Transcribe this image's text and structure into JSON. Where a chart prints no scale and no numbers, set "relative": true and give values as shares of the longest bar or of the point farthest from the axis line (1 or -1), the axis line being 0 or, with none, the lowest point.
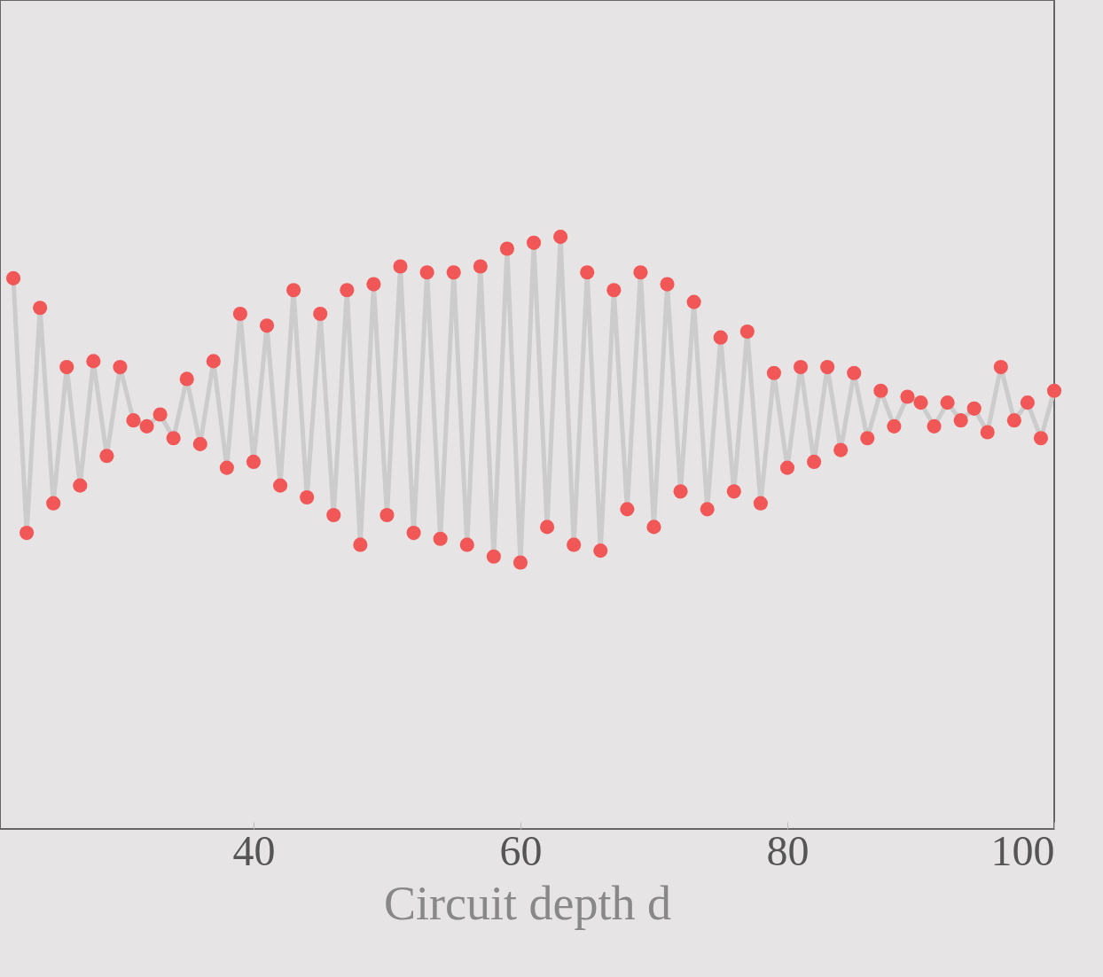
{
  "chart_data": {
    "type": "line",
    "xlabel": "Circuit depth d",
    "relative": true,
    "xlim": [
      21,
      100
    ],
    "xticks": [
      40,
      60,
      80,
      100
    ],
    "marker": "circle",
    "x": [
      22,
      23,
      24,
      25,
      26,
      27,
      28,
      29,
      30,
      31,
      32,
      33,
      34,
      35,
      36,
      37,
      38,
      39,
      40,
      41,
      42,
      43,
      44,
      45,
      46,
      47,
      48,
      49,
      50,
      51,
      52,
      53,
      54,
      55,
      56,
      57,
      58,
      59,
      60,
      61,
      62,
      63,
      64,
      65,
      66,
      67,
      68,
      69,
      70,
      71,
      72,
      73,
      74,
      75,
      76,
      77,
      78,
      79,
      80,
      81,
      82,
      83,
      84,
      85,
      86,
      87,
      88,
      89,
      90,
      91,
      92,
      93,
      94,
      95,
      96,
      97,
      98,
      99,
      100
    ],
    "series": [
      {
        "color": "#f25757",
        "values": [
          0.93,
          0.5,
          0.88,
          0.55,
          0.78,
          0.58,
          0.79,
          0.63,
          0.78,
          0.69,
          0.68,
          0.7,
          0.66,
          0.76,
          0.65,
          0.79,
          0.61,
          0.87,
          0.62,
          0.85,
          0.58,
          0.91,
          0.56,
          0.87,
          0.53,
          0.91,
          0.48,
          0.92,
          0.53,
          0.95,
          0.5,
          0.94,
          0.49,
          0.94,
          0.48,
          0.95,
          0.46,
          0.98,
          0.45,
          0.99,
          0.51,
          1,
          0.48,
          0.94,
          0.47,
          0.91,
          0.54,
          0.94,
          0.51,
          0.92,
          0.57,
          0.89,
          0.54,
          0.83,
          0.57,
          0.84,
          0.55,
          0.77,
          0.61,
          0.78,
          0.62,
          0.78,
          0.64,
          0.77,
          0.66,
          0.74,
          0.68,
          0.73,
          0.72,
          0.68,
          0.72,
          0.69,
          0.71,
          0.67,
          0.78,
          0.69,
          0.72,
          0.66,
          0.74
        ]
      }
    ]
  }
}
